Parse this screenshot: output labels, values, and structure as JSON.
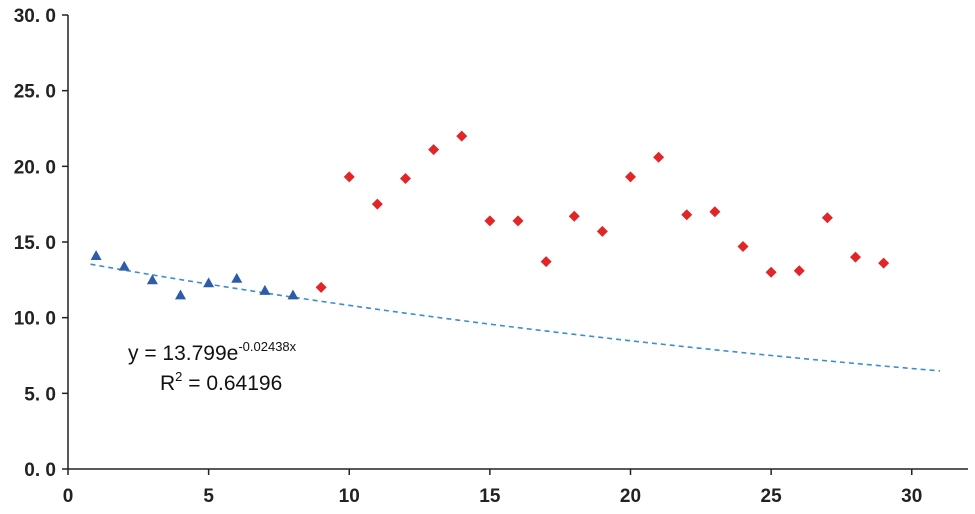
{
  "chart_data": {
    "type": "scatter",
    "x_range": [
      0,
      32
    ],
    "y_range": [
      0,
      30
    ],
    "x_ticks": [
      "0",
      "5",
      "10",
      "15",
      "20",
      "25",
      "30"
    ],
    "x_tick_values": [
      0,
      5,
      10,
      15,
      20,
      25,
      30
    ],
    "y_ticks": [
      "0. 0",
      "5. 0",
      "10. 0",
      "15. 0",
      "20. 0",
      "25. 0",
      "30. 0"
    ],
    "y_tick_values": [
      0,
      5,
      10,
      15,
      20,
      25,
      30
    ],
    "grid": false,
    "series": [
      {
        "marker": "triangle",
        "color": "#2e5ca8",
        "points": [
          {
            "x": 1,
            "y": 14.1
          },
          {
            "x": 2,
            "y": 13.4
          },
          {
            "x": 3,
            "y": 12.5
          },
          {
            "x": 4,
            "y": 11.5
          },
          {
            "x": 5,
            "y": 12.3
          },
          {
            "x": 6,
            "y": 12.6
          },
          {
            "x": 7,
            "y": 11.8
          },
          {
            "x": 8,
            "y": 11.5
          }
        ]
      },
      {
        "marker": "diamond",
        "color": "#e02626",
        "points": [
          {
            "x": 9,
            "y": 12.0
          },
          {
            "x": 10,
            "y": 19.3
          },
          {
            "x": 11,
            "y": 17.5
          },
          {
            "x": 12,
            "y": 19.2
          },
          {
            "x": 13,
            "y": 21.1
          },
          {
            "x": 14,
            "y": 22.0
          },
          {
            "x": 15,
            "y": 16.4
          },
          {
            "x": 16,
            "y": 16.4
          },
          {
            "x": 17,
            "y": 13.7
          },
          {
            "x": 18,
            "y": 16.7
          },
          {
            "x": 19,
            "y": 15.7
          },
          {
            "x": 20,
            "y": 19.3
          },
          {
            "x": 21,
            "y": 20.6
          },
          {
            "x": 22,
            "y": 16.8
          },
          {
            "x": 23,
            "y": 17.0
          },
          {
            "x": 24,
            "y": 14.7
          },
          {
            "x": 25,
            "y": 13.0
          },
          {
            "x": 26,
            "y": 13.1
          },
          {
            "x": 27,
            "y": 16.6
          },
          {
            "x": 28,
            "y": 14.0
          },
          {
            "x": 29,
            "y": 13.6
          }
        ]
      }
    ],
    "trendline": {
      "type": "exponential",
      "a": 13.799,
      "b": -0.02438,
      "x_from": 0.8,
      "x_to": 31,
      "color": "#3a8fd0",
      "dashed": true
    },
    "equation": {
      "prefix": "y = 13.799e",
      "exponent": "-0.02438x",
      "r2_label": "R",
      "r2_sup": "2",
      "r2_value": " = 0.64196"
    }
  }
}
